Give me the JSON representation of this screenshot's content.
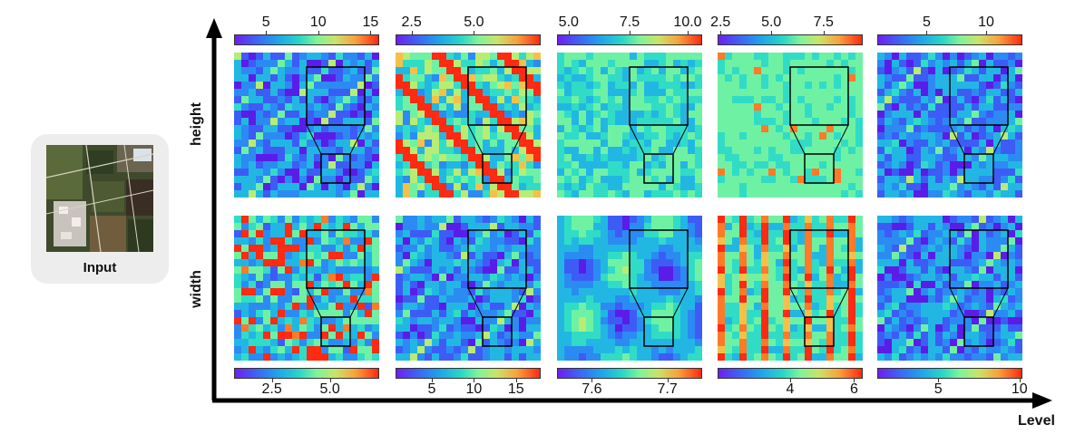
{
  "input": {
    "label": "Input"
  },
  "axes": {
    "row_labels": [
      "height",
      "width"
    ],
    "x_label": "Level"
  },
  "colorbars": {
    "top": [
      {
        "ticks": [
          {
            "label": "5",
            "pos": 0.22
          },
          {
            "label": "10",
            "pos": 0.58
          },
          {
            "label": "15",
            "pos": 0.94
          }
        ]
      },
      {
        "ticks": [
          {
            "label": "2.5",
            "pos": 0.11
          },
          {
            "label": "5.0",
            "pos": 0.54
          }
        ]
      },
      {
        "ticks": [
          {
            "label": "5.0",
            "pos": 0.08
          },
          {
            "label": "7.5",
            "pos": 0.5
          },
          {
            "label": "10.0",
            "pos": 0.9
          }
        ]
      },
      {
        "ticks": [
          {
            "label": "2.5",
            "pos": 0.02
          },
          {
            "label": "5.0",
            "pos": 0.37
          },
          {
            "label": "7.5",
            "pos": 0.73
          }
        ]
      },
      {
        "ticks": [
          {
            "label": "5",
            "pos": 0.34
          },
          {
            "label": "10",
            "pos": 0.75
          }
        ]
      }
    ],
    "bottom": [
      {
        "ticks": [
          {
            "label": "2.5",
            "pos": 0.26
          },
          {
            "label": "5.0",
            "pos": 0.66
          }
        ]
      },
      {
        "ticks": [
          {
            "label": "5",
            "pos": 0.25
          },
          {
            "label": "10",
            "pos": 0.54
          },
          {
            "label": "15",
            "pos": 0.83
          }
        ]
      },
      {
        "ticks": [
          {
            "label": "7.6",
            "pos": 0.24
          },
          {
            "label": "7.7",
            "pos": 0.76
          }
        ]
      },
      {
        "ticks": [
          {
            "label": "4",
            "pos": 0.5
          },
          {
            "label": "6",
            "pos": 0.94
          }
        ]
      },
      {
        "ticks": [
          {
            "label": "5",
            "pos": 0.42
          },
          {
            "label": "10",
            "pos": 0.98
          }
        ]
      }
    ]
  },
  "panels": [
    {
      "row": "height",
      "col": 1,
      "palette": "blue",
      "seed": 11
    },
    {
      "row": "height",
      "col": 2,
      "palette": "hot",
      "seed": 23
    },
    {
      "row": "height",
      "col": 3,
      "palette": "teal",
      "seed": 37
    },
    {
      "row": "height",
      "col": 4,
      "palette": "mint",
      "seed": 41
    },
    {
      "row": "height",
      "col": 5,
      "palette": "blue",
      "seed": 53
    },
    {
      "row": "width",
      "col": 1,
      "palette": "mixed",
      "seed": 61
    },
    {
      "row": "width",
      "col": 2,
      "palette": "blue",
      "seed": 73
    },
    {
      "row": "width",
      "col": 3,
      "palette": "smooth",
      "seed": 89
    },
    {
      "row": "width",
      "col": 4,
      "palette": "stripe",
      "seed": 97
    },
    {
      "row": "width",
      "col": 5,
      "palette": "blue",
      "seed": 101
    }
  ]
}
